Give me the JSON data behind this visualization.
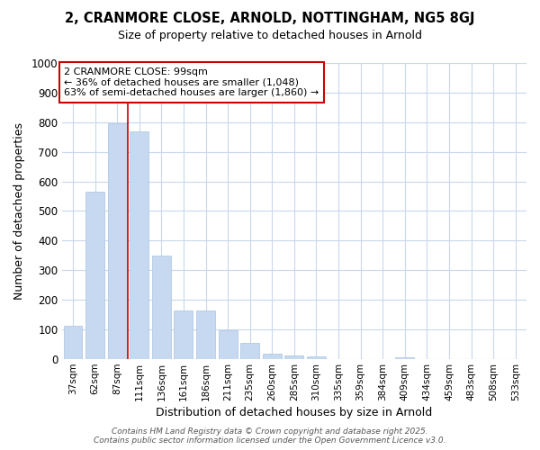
{
  "title": "2, CRANMORE CLOSE, ARNOLD, NOTTINGHAM, NG5 8GJ",
  "subtitle": "Size of property relative to detached houses in Arnold",
  "xlabel": "Distribution of detached houses by size in Arnold",
  "ylabel": "Number of detached properties",
  "categories": [
    "37sqm",
    "62sqm",
    "87sqm",
    "111sqm",
    "136sqm",
    "161sqm",
    "186sqm",
    "211sqm",
    "235sqm",
    "260sqm",
    "285sqm",
    "310sqm",
    "335sqm",
    "359sqm",
    "384sqm",
    "409sqm",
    "434sqm",
    "459sqm",
    "483sqm",
    "508sqm",
    "533sqm"
  ],
  "values": [
    113,
    565,
    795,
    770,
    350,
    165,
    165,
    98,
    55,
    18,
    10,
    8,
    0,
    0,
    0,
    5,
    0,
    0,
    0,
    0,
    0
  ],
  "bar_color": "#c6d9f0",
  "bar_edgecolor": "#a8c4e0",
  "vline_x_pos": 2.5,
  "vline_color": "#cc0000",
  "annotation_title": "2 CRANMORE CLOSE: 99sqm",
  "annotation_line2": "← 36% of detached houses are smaller (1,048)",
  "annotation_line3": "63% of semi-detached houses are larger (1,860) →",
  "annotation_box_edgecolor": "#cc0000",
  "ylim": [
    0,
    1000
  ],
  "yticks": [
    0,
    100,
    200,
    300,
    400,
    500,
    600,
    700,
    800,
    900,
    1000
  ],
  "bg_color": "#ffffff",
  "grid_color": "#c8d8ec",
  "footer1": "Contains HM Land Registry data © Crown copyright and database right 2025.",
  "footer2": "Contains public sector information licensed under the Open Government Licence v3.0."
}
